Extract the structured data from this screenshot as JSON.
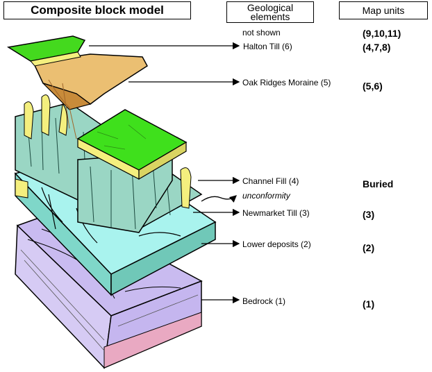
{
  "headers": {
    "model": "Composite block model",
    "geo_line1": "Geological",
    "geo_line2": "elements",
    "map_units": "Map units"
  },
  "elements": [
    {
      "name": "not shown",
      "map_unit": "(9,10,11)"
    },
    {
      "name": "Halton Till (6)",
      "map_unit": "(4,7,8)"
    },
    {
      "name": "Oak Ridges Moraine (5)",
      "map_unit": "(5,6)"
    },
    {
      "name": "Channel Fill (4)",
      "map_unit": "Buried"
    },
    {
      "name": "unconformity",
      "map_unit": ""
    },
    {
      "name": "Newmarket Till (3)",
      "map_unit": "(3)"
    },
    {
      "name": "Lower deposits (2)",
      "map_unit": "(2)"
    },
    {
      "name": "Bedrock (1)",
      "map_unit": "(1)"
    }
  ],
  "colors": {
    "halton_till": "#44d91e",
    "oak_ridges_moraine": "#ebbf72",
    "channel_fill_top": "#3fe01c",
    "newmarket_till": "#9ad6c4",
    "lower_deposits": "#a9f3ee",
    "bedrock": "#c7b8ef",
    "bedrock_base": "#e9a9c2",
    "channel_yellow": "#f4ef7e"
  }
}
